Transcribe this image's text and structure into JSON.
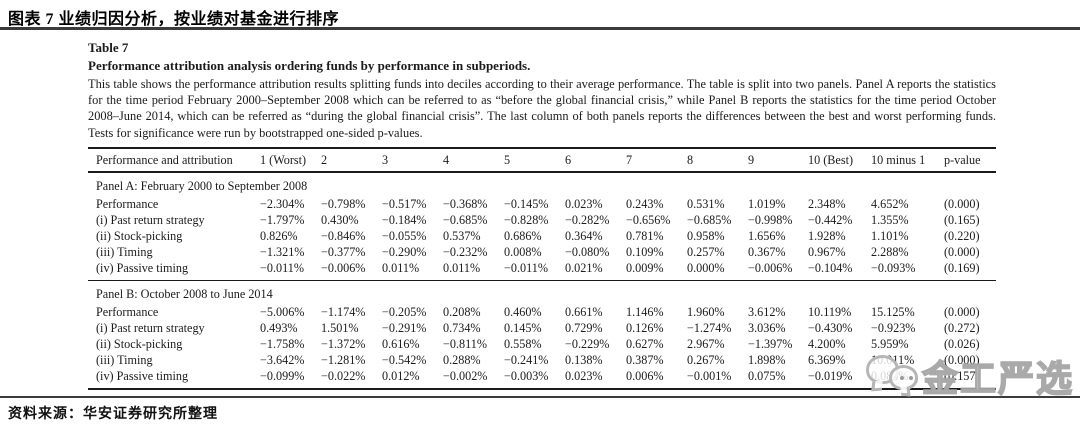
{
  "header": {
    "title": "图表 7 业绩归因分析，按业绩对基金进行排序"
  },
  "footer": {
    "source": "资料来源：华安证券研究所整理"
  },
  "watermark": {
    "text": "金工严选",
    "icon": "wechat-bubbles-icon"
  },
  "paper": {
    "table_label": "Table 7",
    "caption": "Performance attribution analysis ordering funds by performance in subperiods.",
    "description": "This table shows the performance attribution results splitting funds into deciles according to their average performance. The table is split into two panels. Panel A reports the statistics for the time period February 2000–September 2008 which can be referred to as “before the global financial crisis,” while Panel B reports the statistics for the time period October 2008–June 2014, which can be referred as “during the global financial crisis”. The last column of both panels reports the differences between the best and worst performing funds. Tests for significance were run by bootstrapped one-sided p-values.",
    "columns": [
      "Performance and attribution",
      "1 (Worst)",
      "2",
      "3",
      "4",
      "5",
      "6",
      "7",
      "8",
      "9",
      "10 (Best)",
      "10 minus 1",
      "p-value"
    ],
    "panels": [
      {
        "title": "Panel A: February 2000 to September 2008",
        "rows": [
          {
            "label": "Performance",
            "values": [
              "−2.304%",
              "−0.798%",
              "−0.517%",
              "−0.368%",
              "−0.145%",
              "0.023%",
              "0.243%",
              "0.531%",
              "1.019%",
              "2.348%",
              "4.652%",
              "(0.000)"
            ]
          },
          {
            "label": "(i) Past return strategy",
            "values": [
              "−1.797%",
              "0.430%",
              "−0.184%",
              "−0.685%",
              "−0.828%",
              "−0.282%",
              "−0.656%",
              "−0.685%",
              "−0.998%",
              "−0.442%",
              "1.355%",
              "(0.165)"
            ]
          },
          {
            "label": "(ii) Stock-picking",
            "values": [
              "0.826%",
              "−0.846%",
              "−0.055%",
              "0.537%",
              "0.686%",
              "0.364%",
              "0.781%",
              "0.958%",
              "1.656%",
              "1.928%",
              "1.101%",
              "(0.220)"
            ]
          },
          {
            "label": "(iii) Timing",
            "values": [
              "−1.321%",
              "−0.377%",
              "−0.290%",
              "−0.232%",
              "0.008%",
              "−0.080%",
              "0.109%",
              "0.257%",
              "0.367%",
              "0.967%",
              "2.288%",
              "(0.000)"
            ]
          },
          {
            "label": "(iv) Passive timing",
            "values": [
              "−0.011%",
              "−0.006%",
              "0.011%",
              "0.011%",
              "−0.011%",
              "0.021%",
              "0.009%",
              "0.000%",
              "−0.006%",
              "−0.104%",
              "−0.093%",
              "(0.169)"
            ]
          }
        ]
      },
      {
        "title": "Panel B: October 2008 to June 2014",
        "rows": [
          {
            "label": "Performance",
            "values": [
              "−5.006%",
              "−1.174%",
              "−0.205%",
              "0.208%",
              "0.460%",
              "0.661%",
              "1.146%",
              "1.960%",
              "3.612%",
              "10.119%",
              "15.125%",
              "(0.000)"
            ]
          },
          {
            "label": "(i) Past return strategy",
            "values": [
              "0.493%",
              "1.501%",
              "−0.291%",
              "0.734%",
              "0.145%",
              "0.729%",
              "0.126%",
              "−1.274%",
              "3.036%",
              "−0.430%",
              "−0.923%",
              "(0.272)"
            ]
          },
          {
            "label": "(ii) Stock-picking",
            "values": [
              "−1.758%",
              "−1.372%",
              "0.616%",
              "−0.811%",
              "0.558%",
              "−0.229%",
              "0.627%",
              "2.967%",
              "−1.397%",
              "4.200%",
              "5.959%",
              "(0.026)"
            ]
          },
          {
            "label": "(iii) Timing",
            "values": [
              "−3.642%",
              "−1.281%",
              "−0.542%",
              "0.288%",
              "−0.241%",
              "0.138%",
              "0.387%",
              "0.267%",
              "1.898%",
              "6.369%",
              "10.011%",
              "(0.000)"
            ]
          },
          {
            "label": "(iv) Passive timing",
            "values": [
              "−0.099%",
              "−0.022%",
              "0.012%",
              "−0.002%",
              "−0.003%",
              "0.023%",
              "0.006%",
              "−0.001%",
              "0.075%",
              "−0.019%",
              "0.080%",
              "(0.157)"
            ]
          }
        ]
      }
    ]
  },
  "colors": {
    "rule_dark": "#3b3b3b",
    "table_rule": "#1b1b1b",
    "text": "#1b1b1b",
    "watermark_gray": "#b2b2b2"
  }
}
